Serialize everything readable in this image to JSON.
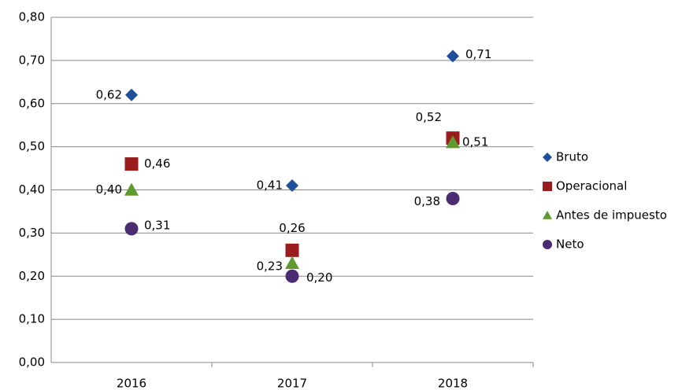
{
  "chart_data": {
    "type": "scatter",
    "categories": [
      "2016",
      "2017",
      "2018"
    ],
    "ylim": [
      0,
      0.8
    ],
    "yticks": [
      {
        "value": 0,
        "label": "0,00"
      },
      {
        "value": 0.1,
        "label": "0,10"
      },
      {
        "value": 0.2,
        "label": "0,20"
      },
      {
        "value": 0.3,
        "label": "0,30"
      },
      {
        "value": 0.4,
        "label": "0,40"
      },
      {
        "value": 0.5,
        "label": "0,50"
      },
      {
        "value": 0.6,
        "label": "0,60"
      },
      {
        "value": 0.7,
        "label": "0,70"
      },
      {
        "value": 0.8,
        "label": "0,80"
      }
    ],
    "grid": true,
    "legend": "right",
    "series": [
      {
        "name": "Bruto",
        "color": "#1f4e9a",
        "marker": "diamond",
        "values": [
          0.62,
          0.41,
          0.71
        ],
        "value_labels": [
          "0,62",
          "0,41",
          "0,71"
        ]
      },
      {
        "name": "Operacional",
        "color": "#9b1c1c",
        "marker": "square",
        "values": [
          0.46,
          0.26,
          0.52
        ],
        "value_labels": [
          "0,46",
          "0,26",
          "0,52"
        ]
      },
      {
        "name": "Antes de impuesto",
        "color": "#5f9a2c",
        "marker": "triangle",
        "values": [
          0.4,
          0.23,
          0.51
        ],
        "value_labels": [
          "0,40",
          "0,23",
          "0,51"
        ]
      },
      {
        "name": "Neto",
        "color": "#4b2c73",
        "marker": "circle",
        "values": [
          0.31,
          0.2,
          0.38
        ],
        "value_labels": [
          "0,31",
          "0,20",
          "0,38"
        ]
      }
    ]
  }
}
